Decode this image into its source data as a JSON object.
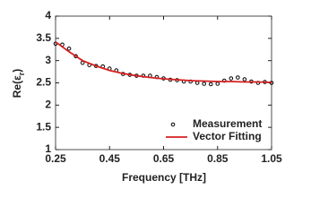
{
  "chart_data": {
    "type": "line",
    "xlabel": "Frequency [THz]",
    "ylabel": {
      "main": "Re(ε",
      "sub": "r",
      "end": ")"
    },
    "xlim": [
      0.25,
      1.05
    ],
    "xticks": [
      0.25,
      0.45,
      0.65,
      0.85,
      1.05
    ],
    "ylim": [
      1,
      4
    ],
    "yticks": [
      1,
      1.5,
      2,
      2.5,
      3,
      3.5,
      4
    ],
    "grid": false,
    "legend": "lower right",
    "series": [
      {
        "name": "Measurement",
        "mode": "markers",
        "color": "#000000",
        "x": [
          0.25,
          0.275,
          0.3,
          0.325,
          0.35,
          0.375,
          0.4,
          0.425,
          0.45,
          0.475,
          0.5,
          0.525,
          0.55,
          0.575,
          0.6,
          0.625,
          0.65,
          0.675,
          0.7,
          0.725,
          0.75,
          0.775,
          0.8,
          0.825,
          0.85,
          0.875,
          0.9,
          0.925,
          0.95,
          0.975,
          1.0,
          1.025,
          1.05
        ],
        "values": [
          3.38,
          3.36,
          3.27,
          3.1,
          2.95,
          2.9,
          2.88,
          2.87,
          2.82,
          2.78,
          2.7,
          2.68,
          2.66,
          2.66,
          2.66,
          2.63,
          2.6,
          2.57,
          2.56,
          2.53,
          2.53,
          2.5,
          2.48,
          2.47,
          2.48,
          2.55,
          2.6,
          2.62,
          2.58,
          2.53,
          2.5,
          2.52,
          2.5
        ]
      },
      {
        "name": "Vector Fitting",
        "mode": "line",
        "color": "#d62020",
        "x": [
          0.25,
          0.3,
          0.35,
          0.4,
          0.45,
          0.5,
          0.55,
          0.6,
          0.65,
          0.7,
          0.75,
          0.8,
          0.85,
          0.9,
          0.95,
          1.0,
          1.05
        ],
        "values": [
          3.42,
          3.2,
          3.0,
          2.88,
          2.78,
          2.71,
          2.66,
          2.62,
          2.59,
          2.57,
          2.55,
          2.54,
          2.53,
          2.53,
          2.52,
          2.52,
          2.51
        ]
      }
    ]
  }
}
